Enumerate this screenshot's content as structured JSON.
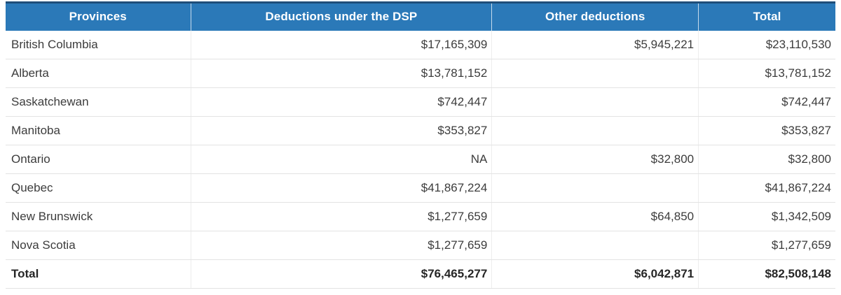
{
  "chart_data": {
    "type": "table",
    "columns": [
      "Provinces",
      "Deductions under the DSP",
      "Other deductions",
      "Total"
    ],
    "rows": [
      [
        "British Columbia",
        "$17,165,309",
        "$5,945,221",
        "$23,110,530"
      ],
      [
        "Alberta",
        "$13,781,152",
        "",
        "$13,781,152"
      ],
      [
        "Saskatchewan",
        "$742,447",
        "",
        "$742,447"
      ],
      [
        "Manitoba",
        "$353,827",
        "",
        "$353,827"
      ],
      [
        "Ontario",
        "NA",
        "$32,800",
        "$32,800"
      ],
      [
        "Quebec",
        "$41,867,224",
        "",
        "$41,867,224"
      ],
      [
        "New Brunswick",
        "$1,277,659",
        "$64,850",
        "$1,342,509"
      ],
      [
        "Nova Scotia",
        "$1,277,659",
        "",
        "$1,277,659"
      ]
    ],
    "total_row": [
      "Total",
      "$76,465,277",
      "$6,042,871",
      "$82,508,148"
    ]
  },
  "colors": {
    "header_bg": "#2b79b8",
    "header_top": "#1f4e79",
    "header_divider": "#c6dbec",
    "row_border": "#e3e3e3",
    "col_border": "#ededed",
    "body_text": "#3c3c3c",
    "total_text": "#262626"
  }
}
